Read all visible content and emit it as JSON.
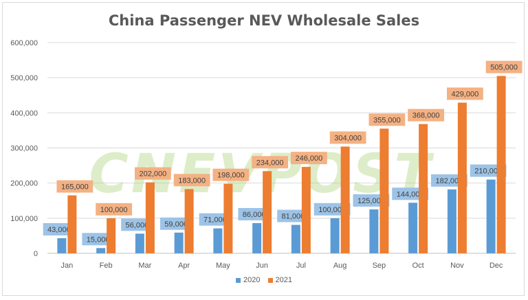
{
  "chart_data": {
    "type": "bar",
    "title": "China Passenger NEV Wholesale Sales",
    "categories": [
      "Jan",
      "Feb",
      "Mar",
      "Apr",
      "May",
      "Jun",
      "Jul",
      "Aug",
      "Sep",
      "Oct",
      "Nov",
      "Dec"
    ],
    "series": [
      {
        "name": "2020",
        "color": "#5b9bd5",
        "label_bg": "#9dc3e6",
        "values": [
          43000,
          15000,
          56000,
          59000,
          71000,
          86000,
          81000,
          100000,
          125000,
          144000,
          182000,
          210000
        ]
      },
      {
        "name": "2021",
        "color": "#ed7d31",
        "label_bg": "#f4b183",
        "values": [
          165000,
          100000,
          202000,
          183000,
          198000,
          234000,
          246000,
          304000,
          355000,
          368000,
          429000,
          505000
        ]
      }
    ],
    "yticks": [
      "0",
      "100,000",
      "200,000",
      "300,000",
      "400,000",
      "500,000",
      "600,000"
    ],
    "ylim": [
      0,
      600000
    ],
    "grid": true,
    "legend": "bottom"
  },
  "watermark": "CNEVPOST"
}
